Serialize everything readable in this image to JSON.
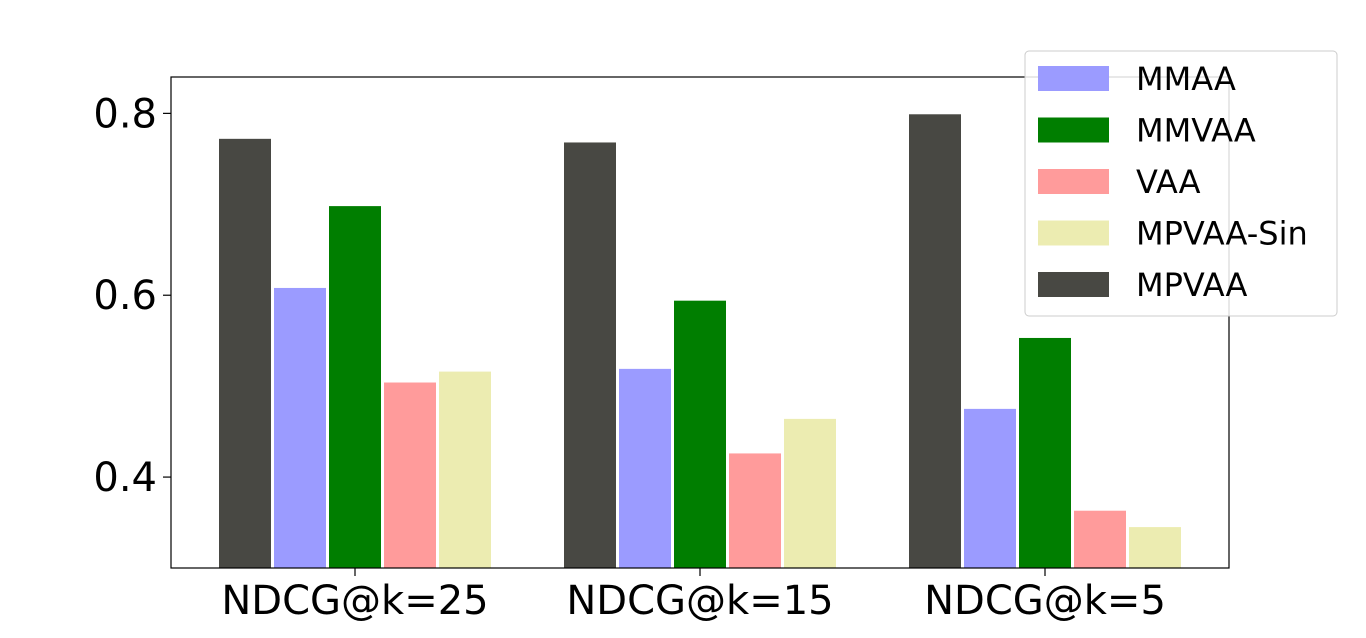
{
  "chart_data": {
    "type": "bar",
    "categories": [
      "NDCG@k=25",
      "NDCG@k=15",
      "NDCG@k=5"
    ],
    "series": [
      {
        "name": "MPVAA",
        "color": "#484843",
        "values": [
          0.772,
          0.768,
          0.799
        ]
      },
      {
        "name": "MMAA",
        "color": "#9b9bff",
        "values": [
          0.608,
          0.519,
          0.475
        ]
      },
      {
        "name": "MMVAA",
        "color": "#007e00",
        "values": [
          0.698,
          0.594,
          0.553
        ]
      },
      {
        "name": "VAA",
        "color": "#ff9b9b",
        "values": [
          0.504,
          0.426,
          0.363
        ]
      },
      {
        "name": "MPVAA-Sin",
        "color": "#ececb1",
        "values": [
          0.516,
          0.464,
          0.345
        ]
      }
    ],
    "legend_order": [
      "MMAA",
      "MMVAA",
      "VAA",
      "MPVAA-Sin",
      "MPVAA"
    ],
    "yticks": [
      "0.4",
      "0.6",
      "0.8"
    ],
    "ylim": [
      0.3,
      0.84
    ],
    "legend_position": "top-right",
    "grid": false
  }
}
